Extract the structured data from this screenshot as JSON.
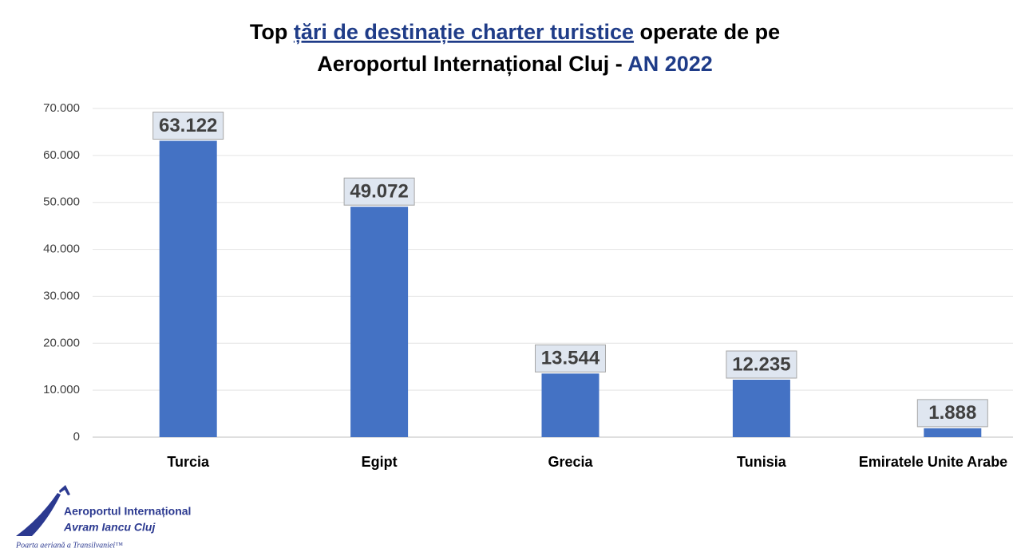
{
  "chart_data": {
    "type": "bar",
    "title_lines": [
      [
        "Top",
        "țări de destinație charter turistice",
        "operate de pe"
      ],
      [
        "Aeroportul Internațional Cluj -",
        "AN 2022"
      ]
    ],
    "categories": [
      "Turcia",
      "Egipt",
      "Grecia",
      "Tunisia",
      "Emiratele Unite Arabe"
    ],
    "values": [
      63122,
      49072,
      13544,
      12235,
      1888
    ],
    "value_labels": [
      "63.122",
      "49.072",
      "13.544",
      "12.235",
      "1.888"
    ],
    "color": "#4472c4",
    "ylim": [
      0,
      70000
    ],
    "yticks": [
      0,
      {
        "value": 10000,
        "label": "10.000"
      },
      {
        "value": 20000,
        "label": "20.000"
      },
      {
        "value": 30000,
        "label": "30.000"
      },
      {
        "value": 40000,
        "label": "40.000"
      },
      {
        "value": 50000,
        "label": "50.000"
      },
      {
        "value": 60000,
        "label": "60.000"
      },
      {
        "value": 70000,
        "label": "70.000"
      }
    ],
    "grid": true
  },
  "logo": {
    "line1": "Aeroportul Internațional",
    "line2": "Avram Iancu Cluj",
    "tagline": "Poarta aeriană a Transilvaniei™"
  }
}
